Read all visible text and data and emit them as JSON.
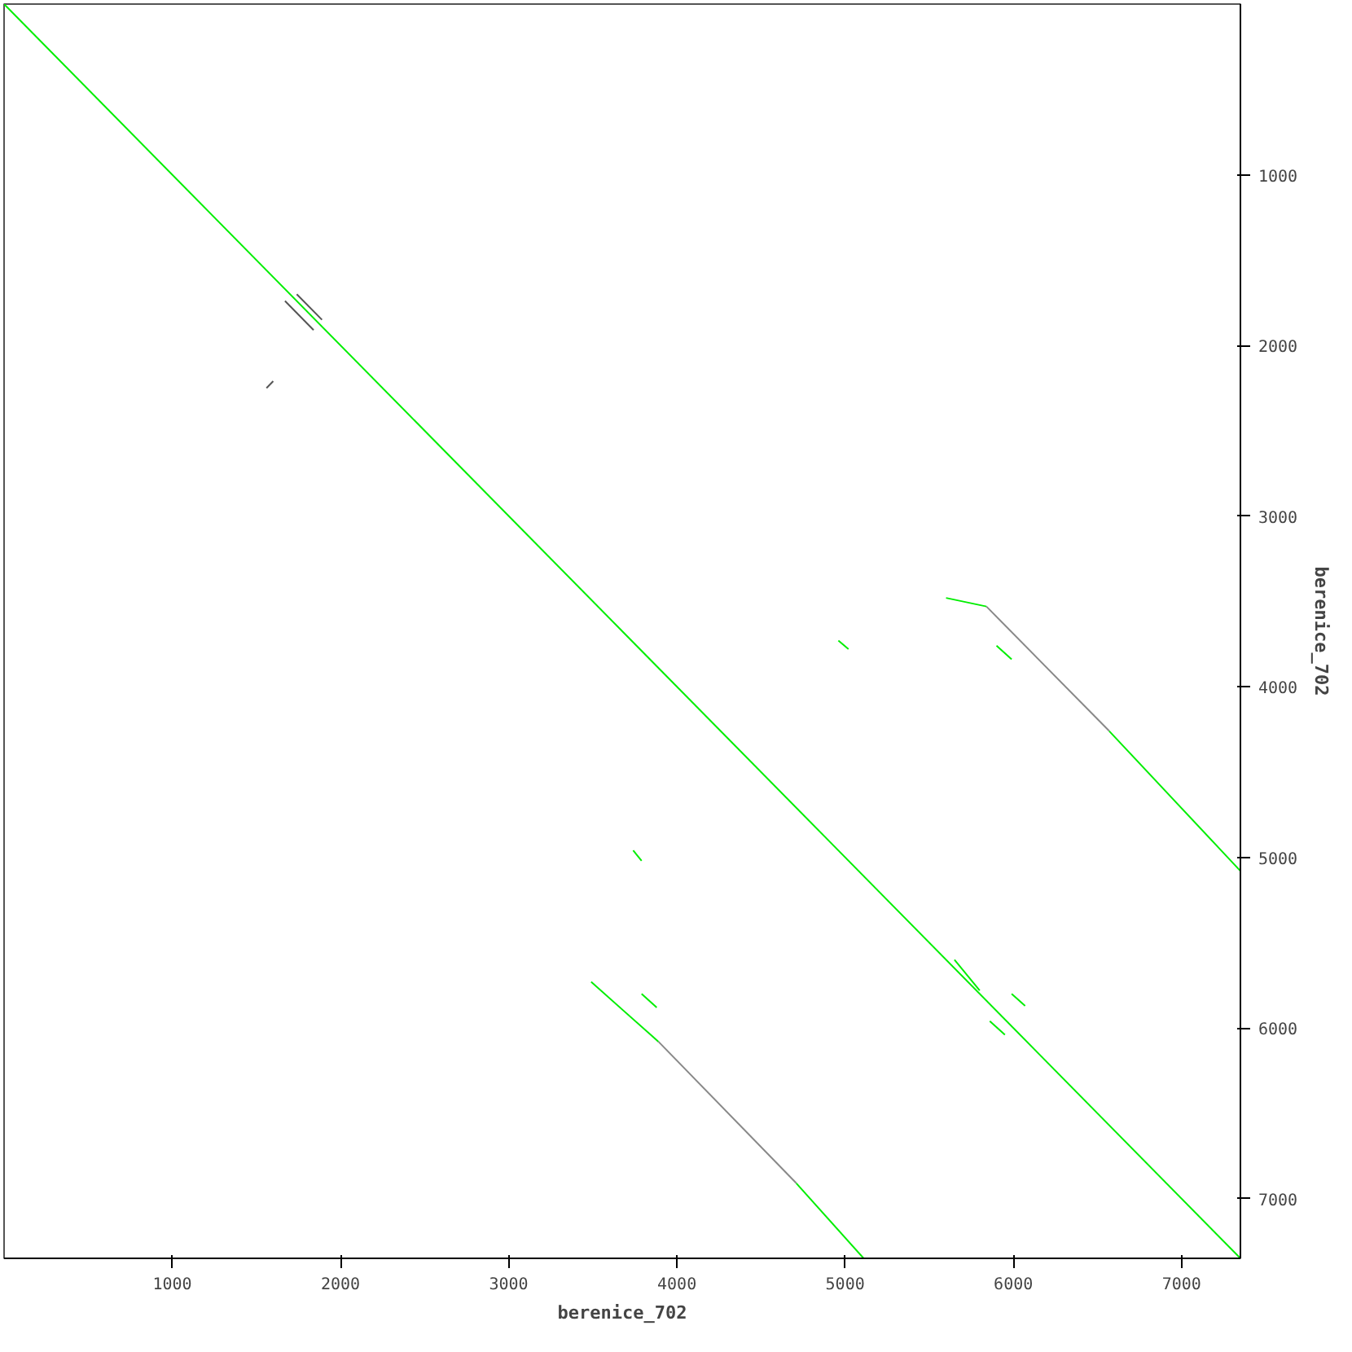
{
  "chart_data": {
    "type": "line",
    "xlabel": "berenice_702",
    "ylabel": "berenice_702",
    "xlim": [
      0,
      7350
    ],
    "ylim": [
      7350,
      0
    ],
    "xticks": [
      1000,
      2000,
      3000,
      4000,
      5000,
      6000,
      7000
    ],
    "yticks": [
      1000,
      2000,
      3000,
      4000,
      5000,
      6000,
      7000
    ],
    "grid": false,
    "marker": "none",
    "line_style": "solid",
    "series": [
      {
        "color": "#00ee00",
        "x": [
          0,
          7350
        ],
        "values": [
          0,
          7350
        ]
      },
      {
        "color": "#555555",
        "x": [
          1670,
          1840
        ],
        "values": [
          1740,
          1910
        ]
      },
      {
        "color": "#555555",
        "x": [
          1740,
          1890
        ],
        "values": [
          1700,
          1850
        ]
      },
      {
        "color": "#555555",
        "x": [
          1560,
          1600
        ],
        "values": [
          2250,
          2210
        ]
      },
      {
        "color": "#00ee00",
        "x": [
          5600,
          5840
        ],
        "values": [
          3480,
          3530
        ]
      },
      {
        "color": "#888888",
        "x": [
          5840,
          6570
        ],
        "values": [
          3530,
          4260
        ]
      },
      {
        "color": "#00ee00",
        "x": [
          6570,
          7350
        ],
        "values": [
          4260,
          5080
        ]
      },
      {
        "color": "#00ee00",
        "x": [
          3490,
          3890
        ],
        "values": [
          5730,
          6080
        ]
      },
      {
        "color": "#888888",
        "x": [
          3890,
          4710
        ],
        "values": [
          6080,
          6910
        ]
      },
      {
        "color": "#00ee00",
        "x": [
          4710,
          5110
        ],
        "values": [
          6910,
          7350
        ]
      },
      {
        "color": "#00ee00",
        "x": [
          4960,
          5020
        ],
        "values": [
          3730,
          3780
        ]
      },
      {
        "color": "#00ee00",
        "x": [
          3740,
          3790
        ],
        "values": [
          4960,
          5020
        ]
      },
      {
        "color": "#00ee00",
        "x": [
          3790,
          3880
        ],
        "values": [
          5800,
          5880
        ]
      },
      {
        "color": "#00ee00",
        "x": [
          5860,
          5950
        ],
        "values": [
          5960,
          6040
        ]
      },
      {
        "color": "#00ee00",
        "x": [
          5990,
          6070
        ],
        "values": [
          5800,
          5870
        ]
      },
      {
        "color": "#00ee00",
        "x": [
          5900,
          5990
        ],
        "values": [
          3760,
          3840
        ]
      },
      {
        "color": "#00ee00",
        "x": [
          5650,
          5800
        ],
        "values": [
          5600,
          5780
        ]
      }
    ]
  }
}
